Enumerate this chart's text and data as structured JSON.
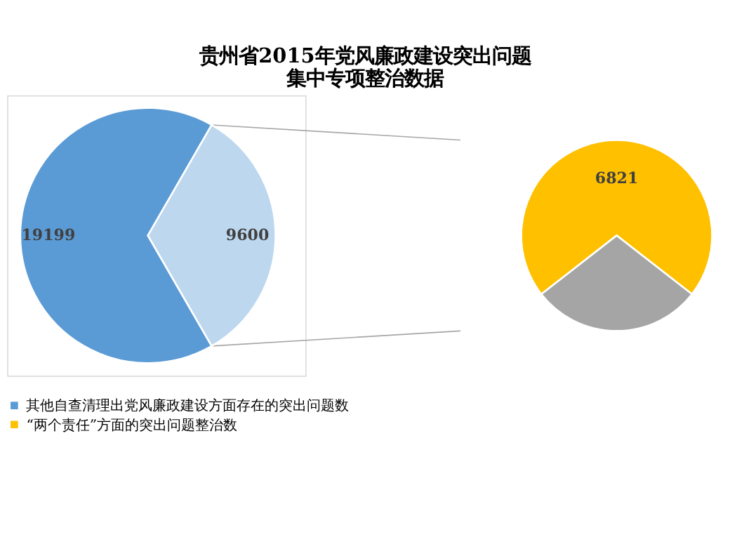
{
  "chart_data": [
    {
      "type": "pie",
      "title": "贵州省2015年党风廉政建设突出问题集中专项整治数据",
      "categories": [
        "其他自查清理出党风廉政建设方面存在的突出问题数",
        null
      ],
      "values": [
        19199,
        9600
      ],
      "colors": [
        "#5b9bd5",
        "#bdd7ee"
      ],
      "data_labels": true,
      "legend": "bottom"
    },
    {
      "type": "pie",
      "categories": [
        "“两个责任”方面的突出问题整治数",
        null
      ],
      "values": [
        6821,
        2779
      ],
      "colors": [
        "#ffc000",
        "#a5a5a5"
      ],
      "value_labels": [
        "6821",
        null
      ],
      "legend": "bottom"
    }
  ]
}
